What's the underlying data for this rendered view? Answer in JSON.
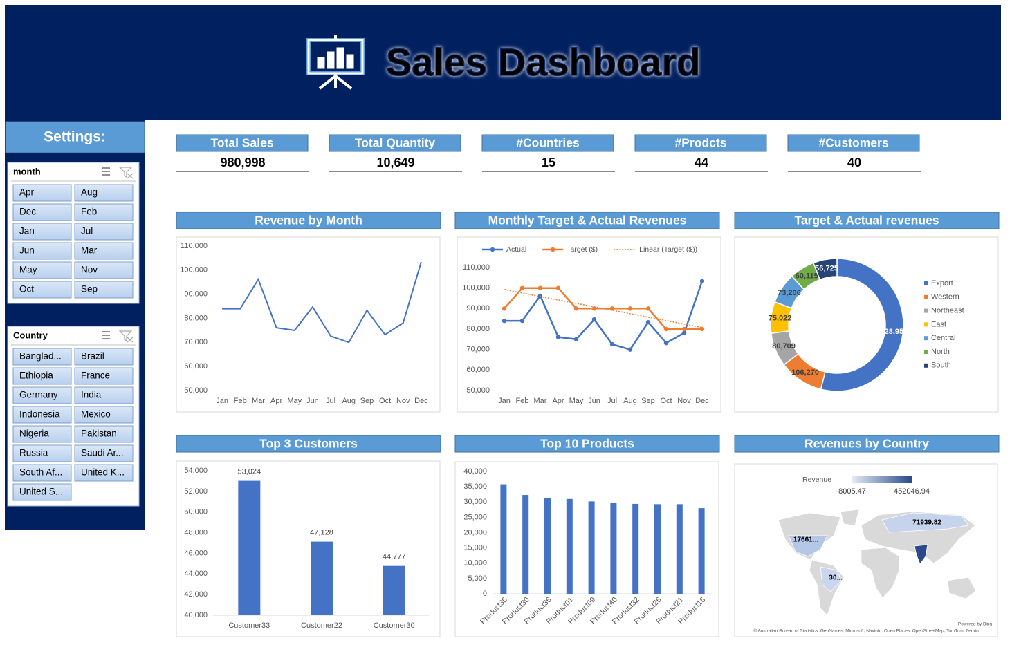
{
  "header": {
    "title": "Sales Dashboard"
  },
  "settings": {
    "title": "Settings:",
    "slicers": [
      {
        "title": "month",
        "items": [
          "Apr",
          "Aug",
          "Dec",
          "Feb",
          "Jan",
          "Jul",
          "Jun",
          "Mar",
          "May",
          "Nov",
          "Oct",
          "Sep"
        ]
      },
      {
        "title": "Country",
        "items": [
          "Banglad...",
          "Brazil",
          "Ethiopia",
          "France",
          "Germany",
          "India",
          "Indonesia",
          "Mexico",
          "Nigeria",
          "Pakistan",
          "Russia",
          "Saudi Ar...",
          "South Af...",
          "United K...",
          "United S..."
        ]
      }
    ]
  },
  "kpis": [
    {
      "label": "Total Sales",
      "value": "980,998"
    },
    {
      "label": "Total Quantity",
      "value": "10,649"
    },
    {
      "label": "#Countries",
      "value": "15"
    },
    {
      "label": "#Prodcts",
      "value": "44"
    },
    {
      "label": "#Customers",
      "value": "40"
    }
  ],
  "chart_data": [
    {
      "type": "line",
      "title": "Revenue by Month",
      "categories": [
        "Jan",
        "Feb",
        "Mar",
        "Apr",
        "May",
        "Jun",
        "Jul",
        "Aug",
        "Sep",
        "Oct",
        "Nov",
        "Dec"
      ],
      "values": [
        84000,
        84000,
        96200,
        76100,
        75000,
        84700,
        72600,
        70000,
        83300,
        73200,
        78100,
        103400
      ],
      "color": "#4472c4",
      "ylim": [
        50000,
        110000
      ],
      "yticks": [
        {
          "value": 50000,
          "label": "50,000"
        },
        {
          "value": 60000,
          "label": "60,000"
        },
        {
          "value": 70000,
          "label": "70,000"
        },
        {
          "value": 80000,
          "label": "80,000"
        },
        {
          "value": 90000,
          "label": "90,000"
        },
        {
          "value": 100000,
          "label": "100,000"
        },
        {
          "value": 110000,
          "label": "110,000"
        }
      ]
    },
    {
      "type": "line",
      "title": "Monthly Target & Actual Revenues",
      "categories": [
        "Jan",
        "Feb",
        "Mar",
        "Apr",
        "May",
        "Jun",
        "Jul",
        "Aug",
        "Sep",
        "Oct",
        "Nov",
        "Dec"
      ],
      "series": [
        {
          "name": "Actual",
          "color": "#4472c4",
          "values": [
            84000,
            84000,
            96200,
            76100,
            75000,
            84700,
            72600,
            70000,
            83300,
            73200,
            78100,
            103400
          ]
        },
        {
          "name": "Target ($)",
          "color": "#ed7d31",
          "values": [
            90000,
            100000,
            100000,
            100000,
            90000,
            90000,
            90000,
            90000,
            90000,
            80000,
            80000,
            80000
          ]
        }
      ],
      "trendline": {
        "name": "Linear (Target ($))",
        "series": 1,
        "color": "#ed7d31"
      },
      "legend": "top",
      "ylim": [
        50000,
        110000
      ],
      "yticks": [
        {
          "value": 50000,
          "label": "50,000"
        },
        {
          "value": 60000,
          "label": "60,000"
        },
        {
          "value": 70000,
          "label": "70,000"
        },
        {
          "value": 80000,
          "label": "80,000"
        },
        {
          "value": 90000,
          "label": "90,000"
        },
        {
          "value": 100000,
          "label": "100,000"
        },
        {
          "value": 110000,
          "label": "110,000"
        }
      ]
    },
    {
      "type": "donut",
      "title": "Target & Actual revenues",
      "categories": [
        "Export",
        "Western",
        "Northeast",
        "East",
        "Central",
        "North",
        "South"
      ],
      "values": [
        528951,
        106270,
        80709,
        75022,
        73206,
        60115,
        56725
      ],
      "value_labels": [
        "528,951",
        "106,270",
        "80,709",
        "75,022",
        "73,206",
        "60,115",
        "56,725"
      ],
      "colors": [
        "#4472c4",
        "#ed7d31",
        "#a5a5a5",
        "#ffc000",
        "#5b9bd5",
        "#70ad47",
        "#264478"
      ],
      "legend": "right"
    },
    {
      "type": "bar",
      "title": "Top 3 Customers",
      "categories": [
        "Customer33",
        "Customer22",
        "Customer30"
      ],
      "values": [
        53024,
        47128,
        44777
      ],
      "value_labels": [
        "53,024",
        "47,128",
        "44,777"
      ],
      "color": "#4472c4",
      "ylim": [
        40000,
        54000
      ],
      "yticks": [
        {
          "value": 40000,
          "label": "40,000"
        },
        {
          "value": 42000,
          "label": "42,000"
        },
        {
          "value": 44000,
          "label": "44,000"
        },
        {
          "value": 46000,
          "label": "46,000"
        },
        {
          "value": 48000,
          "label": "48,000"
        },
        {
          "value": 50000,
          "label": "50,000"
        },
        {
          "value": 52000,
          "label": "52,000"
        },
        {
          "value": 54000,
          "label": "54,000"
        }
      ]
    },
    {
      "type": "bar",
      "title": "Top 10  Products",
      "categories": [
        "Product35",
        "Product30",
        "Product36",
        "Product01",
        "Product09",
        "Product40",
        "Product32",
        "Product26",
        "Product21",
        "Product16"
      ],
      "values": [
        35800,
        32300,
        31400,
        31000,
        30200,
        29800,
        29400,
        29300,
        29300,
        28000
      ],
      "color": "#4472c4",
      "ylim": [
        0,
        40000
      ],
      "yticks": [
        0,
        {
          "value": 5000,
          "label": "5,000"
        },
        {
          "value": 10000,
          "label": "10,000"
        },
        {
          "value": 15000,
          "label": "15,000"
        },
        {
          "value": 20000,
          "label": "20,000"
        },
        {
          "value": 25000,
          "label": "25,000"
        },
        {
          "value": 30000,
          "label": "30,000"
        },
        {
          "value": 35000,
          "label": "35,000"
        },
        {
          "value": 40000,
          "label": "40,000"
        }
      ]
    }
  ],
  "map": {
    "title": "Revenues by Country",
    "legend_title": "Revenue",
    "legend_min": "8005.47",
    "legend_max": "452046.94",
    "labels": [
      "71939.82",
      "17661...",
      "30..."
    ],
    "credit": "Powered by Bing",
    "attribution": "© Australian Bureau of Statistics, GeoNames, Microsoft, Navinfo, Open Places, OpenStreetMap, TomTom, Zenrin"
  }
}
